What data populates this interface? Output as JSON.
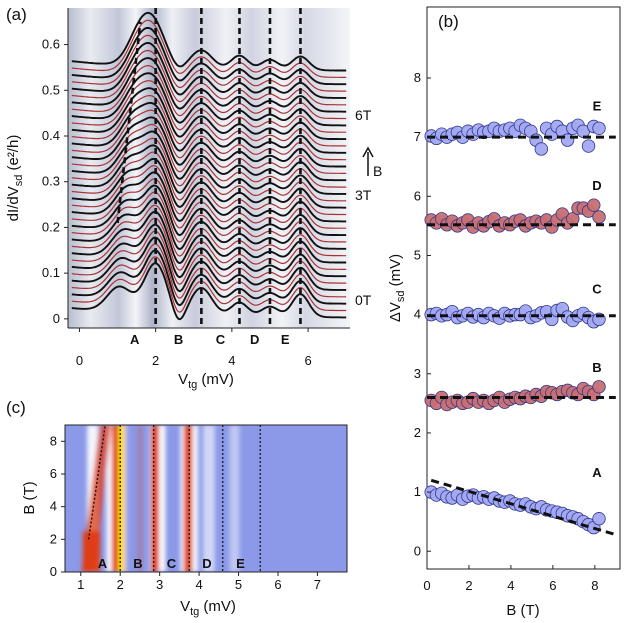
{
  "chart_data": [
    {
      "panel": "(a)",
      "type": "line",
      "xlabel": "V",
      "xlabel_sub": "tg",
      "xlabel_unit": " (mV)",
      "ylabel": "dI/dV",
      "ylabel_sub": "sd",
      "ylabel_unit": " (e²/h)",
      "xlim": [
        -0.3,
        7.1
      ],
      "ylim": [
        -0.02,
        0.68
      ],
      "xticks": [
        0,
        2,
        4,
        6
      ],
      "yticks": [
        0,
        0.1,
        0.2,
        0.3,
        0.4,
        0.5,
        0.6
      ],
      "series_count": 37,
      "series_offset": 0.015,
      "field_range_T": [
        0,
        9
      ],
      "curve_colors": [
        "#111111",
        "#a83232"
      ],
      "resonances_mV": [
        1.4,
        2.0,
        3.2,
        4.2,
        5.0,
        5.8
      ],
      "region_boundaries_mV": [
        2.0,
        3.2,
        4.2,
        5.0,
        5.8
      ],
      "regions": [
        {
          "label": "A",
          "x": 1.45
        },
        {
          "label": "B",
          "x": 2.6
        },
        {
          "label": "C",
          "x": 3.7
        },
        {
          "label": "D",
          "x": 4.6
        },
        {
          "label": "E",
          "x": 5.4
        }
      ],
      "slanted_line": {
        "x0": 1.0,
        "y0": 0.21,
        "x1": 1.6,
        "y1": 0.65
      },
      "field_labels": [
        {
          "text": "6T",
          "y": 0.435
        },
        {
          "text": "3T",
          "y": 0.26
        },
        {
          "text": "0T",
          "y": 0.03
        }
      ],
      "arrow_label": "B"
    },
    {
      "panel": "(b)",
      "type": "scatter",
      "xlabel": "B (T)",
      "ylabel": "ΔV",
      "ylabel_sub": "sd",
      "ylabel_unit": " (mV)",
      "xlim": [
        0,
        9.2
      ],
      "ylim": [
        -0.3,
        9.2
      ],
      "xticks": [
        0,
        2,
        4,
        6,
        8
      ],
      "yticks": [
        0,
        1,
        2,
        3,
        4,
        5,
        6,
        7,
        8
      ],
      "x": [
        0.2,
        0.45,
        0.7,
        0.95,
        1.2,
        1.45,
        1.7,
        1.95,
        2.2,
        2.45,
        2.7,
        2.95,
        3.2,
        3.45,
        3.7,
        3.95,
        4.2,
        4.45,
        4.7,
        4.95,
        5.2,
        5.45,
        5.7,
        5.95,
        6.2,
        6.45,
        6.7,
        6.95,
        7.2,
        7.45,
        7.7,
        7.95,
        8.2
      ],
      "series": [
        {
          "name": "A",
          "color": "#a3a8f2",
          "fit": {
            "x0": 0.2,
            "y0": 1.2,
            "x1": 9.0,
            "y1": 0.28
          },
          "values": [
            1.0,
            0.95,
            0.98,
            0.92,
            0.9,
            0.95,
            0.88,
            0.93,
            0.95,
            0.9,
            0.92,
            0.88,
            0.9,
            0.85,
            0.83,
            0.85,
            0.8,
            0.78,
            0.8,
            0.75,
            0.72,
            0.75,
            0.7,
            0.68,
            0.66,
            0.64,
            0.6,
            0.58,
            0.55,
            0.5,
            0.45,
            0.4,
            0.55
          ]
        },
        {
          "name": "B",
          "color": "#c86e72",
          "fit": {
            "x0": 0.0,
            "y0": 2.6,
            "x1": 9.0,
            "y1": 2.6
          },
          "values": [
            2.55,
            2.5,
            2.6,
            2.48,
            2.52,
            2.55,
            2.5,
            2.52,
            2.58,
            2.52,
            2.55,
            2.5,
            2.55,
            2.6,
            2.52,
            2.57,
            2.6,
            2.58,
            2.62,
            2.6,
            2.65,
            2.62,
            2.7,
            2.68,
            2.65,
            2.7,
            2.72,
            2.68,
            2.65,
            2.75,
            2.7,
            2.65,
            2.78
          ]
        },
        {
          "name": "C",
          "color": "#a3a8f2",
          "fit": {
            "x0": 0.0,
            "y0": 3.98,
            "x1": 9.0,
            "y1": 3.98
          },
          "values": [
            4.0,
            4.02,
            3.98,
            4.0,
            4.05,
            3.95,
            3.98,
            4.02,
            3.96,
            4.0,
            3.95,
            4.02,
            3.98,
            3.94,
            4.02,
            3.98,
            4.0,
            4.0,
            4.06,
            3.95,
            3.98,
            4.03,
            4.05,
            3.92,
            4.07,
            4.1,
            3.96,
            3.9,
            3.98,
            4.02,
            3.95,
            3.88,
            3.92
          ]
        },
        {
          "name": "D",
          "color": "#c86e72",
          "fit": {
            "x0": 0.0,
            "y0": 5.52,
            "x1": 9.0,
            "y1": 5.52
          },
          "values": [
            5.6,
            5.55,
            5.62,
            5.52,
            5.58,
            5.5,
            5.55,
            5.6,
            5.48,
            5.55,
            5.5,
            5.57,
            5.62,
            5.5,
            5.55,
            5.52,
            5.58,
            5.6,
            5.5,
            5.55,
            5.58,
            5.55,
            5.6,
            5.48,
            5.6,
            5.7,
            5.55,
            5.62,
            5.8,
            5.8,
            5.75,
            5.85,
            5.65
          ]
        },
        {
          "name": "E",
          "color": "#a3a8f2",
          "fit": {
            "x0": 0.0,
            "y0": 7.0,
            "x1": 9.0,
            "y1": 7.0
          },
          "values": [
            7.02,
            6.98,
            7.05,
            7.0,
            7.05,
            7.08,
            7.0,
            7.1,
            7.05,
            7.12,
            7.08,
            7.1,
            7.15,
            7.1,
            7.12,
            7.15,
            7.1,
            7.2,
            7.15,
            7.1,
            6.95,
            6.8,
            7.15,
            7.05,
            7.18,
            7.1,
            6.95,
            7.15,
            7.2,
            7.1,
            6.85,
            7.18,
            7.15
          ]
        }
      ]
    },
    {
      "panel": "(c)",
      "type": "heatmap",
      "xlabel": "V",
      "xlabel_sub": "tg",
      "xlabel_unit": " (mV)",
      "ylabel": "B (T)",
      "xlim": [
        0.6,
        7.75
      ],
      "ylim": [
        0,
        9
      ],
      "xticks": [
        1,
        2,
        3,
        4,
        5,
        6,
        7
      ],
      "yticks": [
        0,
        2,
        4,
        6,
        8
      ],
      "dotted_lines_mV": [
        2.0,
        2.85,
        3.75,
        4.6,
        5.55
      ],
      "slanted_line": {
        "x0": 1.2,
        "y0": 2.0,
        "x1": 1.62,
        "y1": 9.0
      },
      "regions": [
        {
          "label": "A",
          "x": 1.55
        },
        {
          "label": "B",
          "x": 2.45
        },
        {
          "label": "C",
          "x": 3.3
        },
        {
          "label": "D",
          "x": 4.2
        },
        {
          "label": "E",
          "x": 5.05
        }
      ],
      "colors": {
        "background": "#8b99e8",
        "low": "#ffffff",
        "mid": "#e03a10",
        "high": "#ffe800"
      }
    }
  ]
}
